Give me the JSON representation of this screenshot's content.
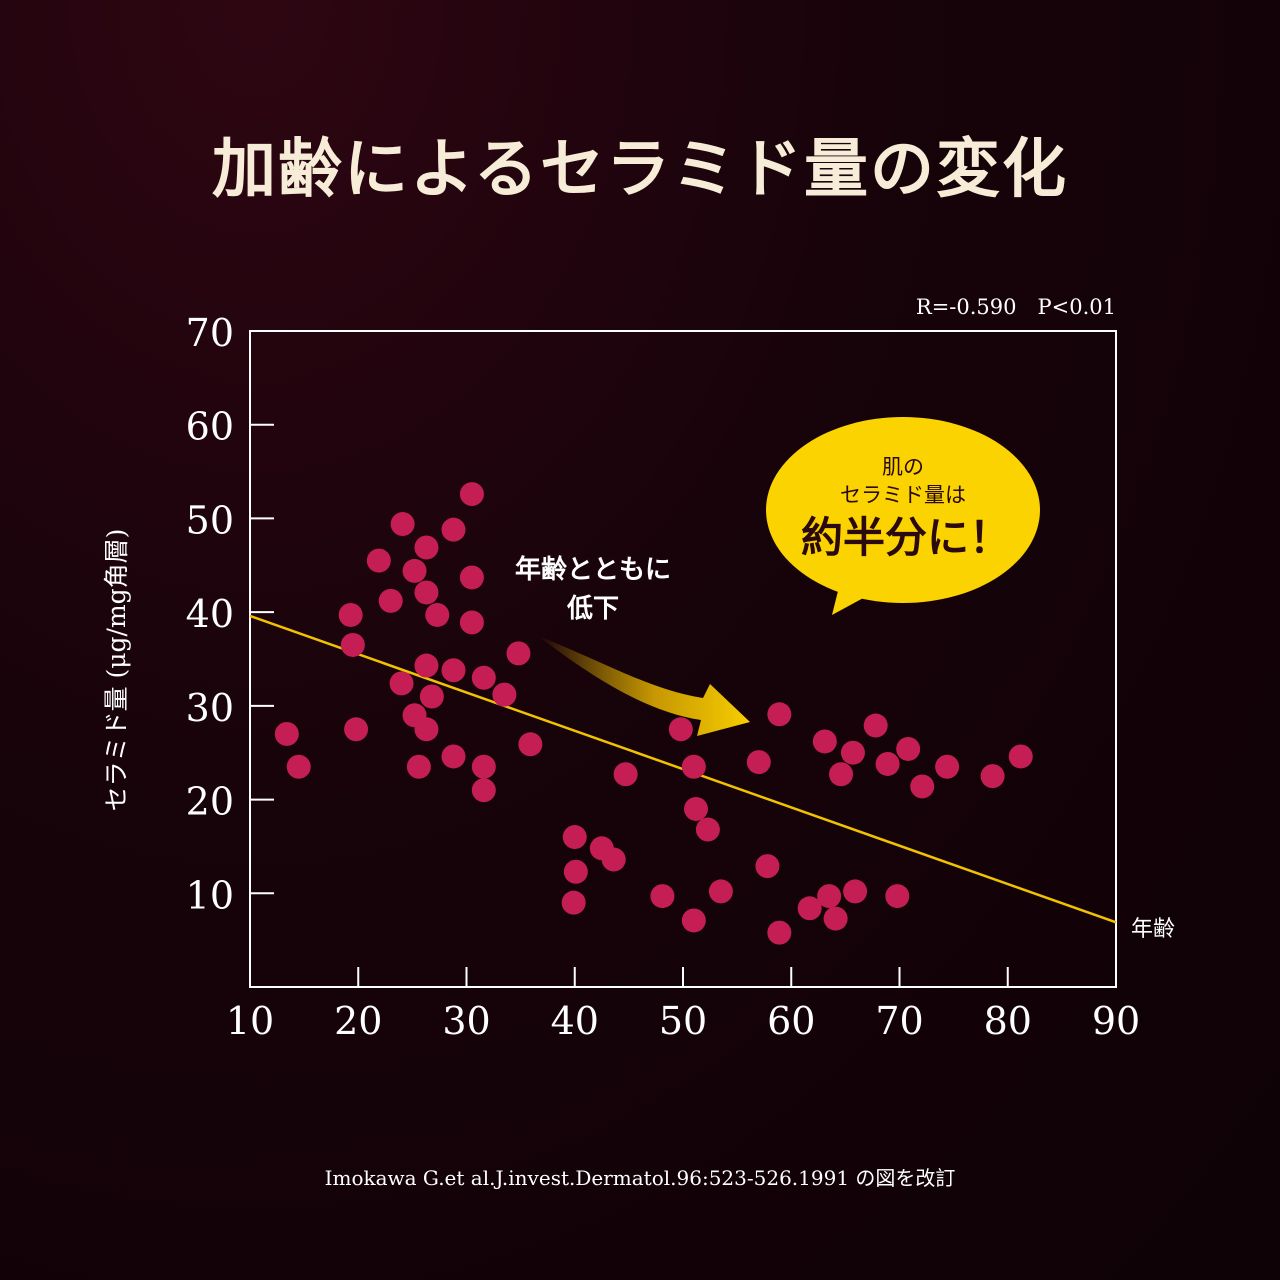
{
  "title": "加齢によるセラミド量の変化",
  "source": "Imokawa G.et al.J.invest.Dermatol.96:523-526.1991 の図を改訂",
  "colors": {
    "background": "#17030a",
    "point": "#c41e55",
    "trend": "#f2c200",
    "bubble": "#fbd300",
    "title": "#f6ecd7"
  },
  "chart_data": {
    "type": "scatter",
    "title": "",
    "xlabel": "年齢",
    "ylabel": "セラミド量 (μg/mg角層)",
    "stats": "R=-0.590　P<0.01",
    "xlim": [
      10,
      90
    ],
    "ylim": [
      0,
      70
    ],
    "x_ticks": [
      10,
      20,
      30,
      40,
      50,
      60,
      70,
      80,
      90
    ],
    "y_ticks": [
      10,
      20,
      30,
      40,
      50,
      60,
      70
    ],
    "grid": false,
    "trend_line": {
      "x": [
        10,
        90
      ],
      "y": [
        39.6,
        6.9
      ]
    },
    "annotation_arrow": "年齢とともに\n低下",
    "annotation_bubble": {
      "line1": "肌の",
      "line2": "セラミド量は",
      "line3": "約半分に！"
    },
    "points": [
      {
        "x": 13.4,
        "y": 27.0
      },
      {
        "x": 14.5,
        "y": 23.5
      },
      {
        "x": 19.3,
        "y": 39.7
      },
      {
        "x": 19.5,
        "y": 36.5
      },
      {
        "x": 19.8,
        "y": 27.5
      },
      {
        "x": 21.9,
        "y": 45.5
      },
      {
        "x": 23.0,
        "y": 41.2
      },
      {
        "x": 24.1,
        "y": 49.4
      },
      {
        "x": 24.0,
        "y": 32.4
      },
      {
        "x": 25.2,
        "y": 44.4
      },
      {
        "x": 25.2,
        "y": 29.0
      },
      {
        "x": 25.6,
        "y": 23.5
      },
      {
        "x": 26.3,
        "y": 46.9
      },
      {
        "x": 26.3,
        "y": 42.1
      },
      {
        "x": 26.3,
        "y": 34.3
      },
      {
        "x": 26.3,
        "y": 27.5
      },
      {
        "x": 26.8,
        "y": 31.0
      },
      {
        "x": 27.3,
        "y": 39.7
      },
      {
        "x": 28.8,
        "y": 48.8
      },
      {
        "x": 28.8,
        "y": 33.8
      },
      {
        "x": 28.8,
        "y": 24.6
      },
      {
        "x": 30.5,
        "y": 52.6
      },
      {
        "x": 30.5,
        "y": 43.7
      },
      {
        "x": 30.5,
        "y": 38.9
      },
      {
        "x": 31.6,
        "y": 33.0
      },
      {
        "x": 31.6,
        "y": 23.5
      },
      {
        "x": 31.6,
        "y": 21.0
      },
      {
        "x": 33.5,
        "y": 31.2
      },
      {
        "x": 34.8,
        "y": 35.6
      },
      {
        "x": 35.9,
        "y": 25.9
      },
      {
        "x": 40.0,
        "y": 16.0
      },
      {
        "x": 40.1,
        "y": 12.3
      },
      {
        "x": 39.9,
        "y": 9.0
      },
      {
        "x": 42.5,
        "y": 14.8
      },
      {
        "x": 43.6,
        "y": 13.6
      },
      {
        "x": 44.7,
        "y": 22.7
      },
      {
        "x": 48.1,
        "y": 9.7
      },
      {
        "x": 49.8,
        "y": 27.5
      },
      {
        "x": 51.0,
        "y": 23.5
      },
      {
        "x": 51.2,
        "y": 19.0
      },
      {
        "x": 51.0,
        "y": 7.1
      },
      {
        "x": 52.3,
        "y": 16.8
      },
      {
        "x": 53.5,
        "y": 10.2
      },
      {
        "x": 57.0,
        "y": 24.0
      },
      {
        "x": 57.8,
        "y": 12.9
      },
      {
        "x": 58.9,
        "y": 29.1
      },
      {
        "x": 58.9,
        "y": 5.8
      },
      {
        "x": 61.7,
        "y": 8.4
      },
      {
        "x": 63.1,
        "y": 26.2
      },
      {
        "x": 63.5,
        "y": 9.7
      },
      {
        "x": 64.1,
        "y": 7.3
      },
      {
        "x": 64.6,
        "y": 22.7
      },
      {
        "x": 65.7,
        "y": 25.0
      },
      {
        "x": 65.9,
        "y": 10.2
      },
      {
        "x": 67.8,
        "y": 27.9
      },
      {
        "x": 68.9,
        "y": 23.8
      },
      {
        "x": 69.8,
        "y": 9.7
      },
      {
        "x": 70.8,
        "y": 25.4
      },
      {
        "x": 72.1,
        "y": 21.4
      },
      {
        "x": 74.4,
        "y": 23.5
      },
      {
        "x": 78.6,
        "y": 22.5
      },
      {
        "x": 81.2,
        "y": 24.6
      }
    ]
  }
}
